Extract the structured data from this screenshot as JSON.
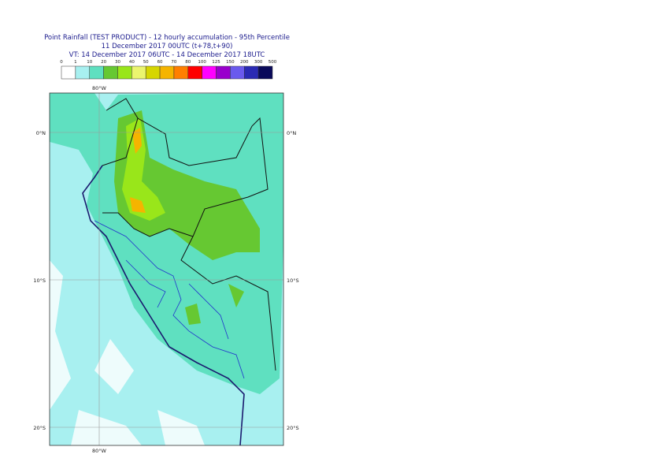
{
  "header": {
    "title": "Point Rainfall (TEST PRODUCT) - 12 hourly accumulation - 95th Percentile",
    "run": "11 December 2017 00UTC (t+78,t+90)",
    "validity": "VT: 14 December 2017 06UTC - 14 December 2017 18UTC"
  },
  "legend": {
    "bounds": [
      0,
      1,
      10,
      20,
      30,
      40,
      50,
      60,
      70,
      80,
      100,
      125,
      150,
      200,
      300,
      500
    ],
    "colors": [
      "#ffffff",
      "#a8f0f0",
      "#5fe0c0",
      "#66c832",
      "#99e61a",
      "#ebf56e",
      "#d6d600",
      "#f5b400",
      "#ff7f00",
      "#ff0000",
      "#ff00ff",
      "#9900cc",
      "#6a5aed",
      "#2a2ab4",
      "#0a0a5a"
    ]
  },
  "map": {
    "lon_labels": [
      "80°W"
    ],
    "lat_labels": [
      "0°N",
      "10°S",
      "20°S"
    ]
  }
}
